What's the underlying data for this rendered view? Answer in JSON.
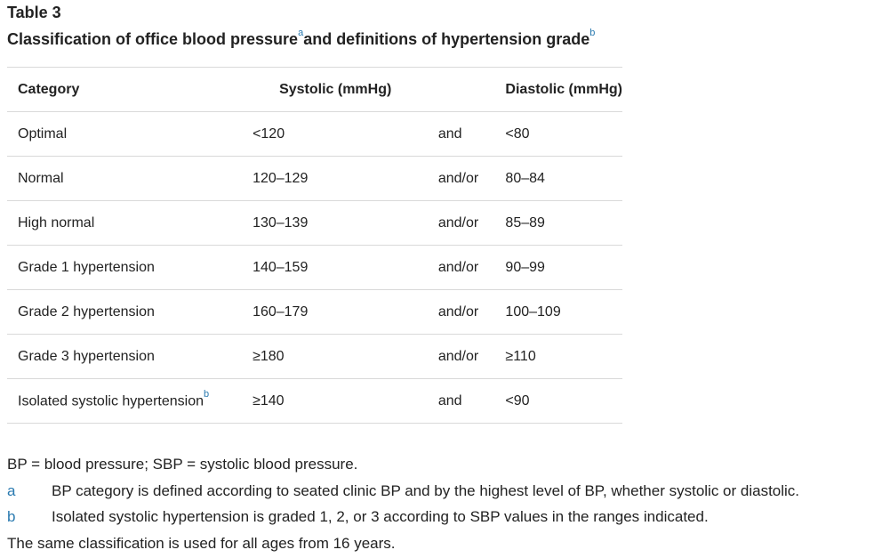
{
  "table": {
    "label": "Table 3",
    "caption_part1": "Classification of office blood pressure",
    "caption_ref1": "a",
    "caption_part2": "and definitions of hypertension grade",
    "caption_ref2": "b",
    "headers": {
      "category": "Category",
      "systolic": "Systolic (mmHg)",
      "diastolic": "Diastolic (mmHg)"
    },
    "rows": [
      {
        "category": "Optimal",
        "ref": "",
        "systolic": "<120",
        "conj": "and",
        "diastolic": "<80"
      },
      {
        "category": "Normal",
        "ref": "",
        "systolic": "120–129",
        "conj": "and/or",
        "diastolic": "80–84"
      },
      {
        "category": "High normal",
        "ref": "",
        "systolic": "130–139",
        "conj": "and/or",
        "diastolic": "85–89"
      },
      {
        "category": "Grade 1 hypertension",
        "ref": "",
        "systolic": "140–159",
        "conj": "and/or",
        "diastolic": "90–99"
      },
      {
        "category": "Grade 2 hypertension",
        "ref": "",
        "systolic": "160–179",
        "conj": "and/or",
        "diastolic": "100–109"
      },
      {
        "category": "Grade 3 hypertension",
        "ref": "",
        "systolic": "≥180",
        "conj": "and/or",
        "diastolic": "≥110"
      },
      {
        "category": "Isolated systolic hypertension",
        "ref": "b",
        "systolic": "≥140",
        "conj": "and",
        "diastolic": "<90"
      }
    ]
  },
  "notes": {
    "abbreviations": "BP = blood pressure; SBP = systolic blood pressure.",
    "footnotes": [
      {
        "key": "a",
        "text": "BP category is defined according to seated clinic BP and by the highest level of BP, whether systolic or diastolic."
      },
      {
        "key": "b",
        "text": "Isolated systolic hypertension is graded 1, 2, or 3 according to SBP values in the ranges indicated."
      }
    ],
    "closing": "The same classification is used for all ages from 16 years."
  },
  "colors": {
    "link": "#2a7ab0",
    "text": "#222222",
    "rule": "#d9d9d9"
  }
}
